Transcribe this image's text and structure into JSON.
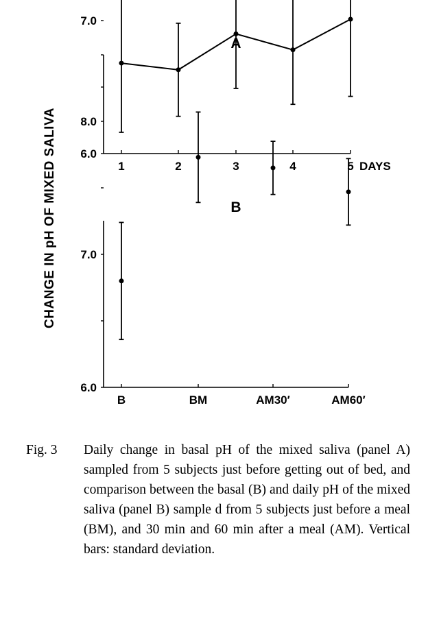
{
  "ylabel": "CHANGE IN pH OF MIXED SALIVA",
  "chart_data": [
    {
      "type": "line",
      "title": "A",
      "categories": [
        "1",
        "2",
        "3",
        "4",
        "5"
      ],
      "x_suffix": "DAYS",
      "ylim": [
        6.0,
        7.5
      ],
      "yticks": [
        6.0,
        6.5,
        7.0,
        7.5
      ],
      "ytick_labels": [
        "6.0",
        "7.0"
      ],
      "series": [
        {
          "name": "pH",
          "values": [
            6.68,
            6.63,
            6.9,
            6.78,
            7.01
          ],
          "err": [
            0.52,
            0.35,
            0.41,
            0.41,
            0.58
          ]
        }
      ]
    },
    {
      "type": "scatter",
      "title": "B",
      "categories": [
        "B",
        "BM",
        "AM30′",
        "AM60′"
      ],
      "ylim": [
        6.0,
        8.5
      ],
      "yticks": [
        6.0,
        6.5,
        7.0,
        7.5,
        8.0,
        8.5
      ],
      "ytick_labels": [
        "6.0",
        "7.0",
        "8.0"
      ],
      "series": [
        {
          "name": "pH",
          "values": [
            6.8,
            7.73,
            7.65,
            7.47
          ],
          "err": [
            0.44,
            0.34,
            0.2,
            0.25
          ]
        }
      ]
    }
  ],
  "caption": {
    "label": "Fig. 3",
    "text": "Daily change in basal pH of the mixed saliva (panel A) sampled from 5 subjects just before getting out of bed, and comparison between the basal (B) and daily pH of the mixed saliva (panel B) sample d from 5 subjects just before a meal (BM), and 30 min and 60 min after a meal (AM). Vertical bars: standard deviation."
  }
}
